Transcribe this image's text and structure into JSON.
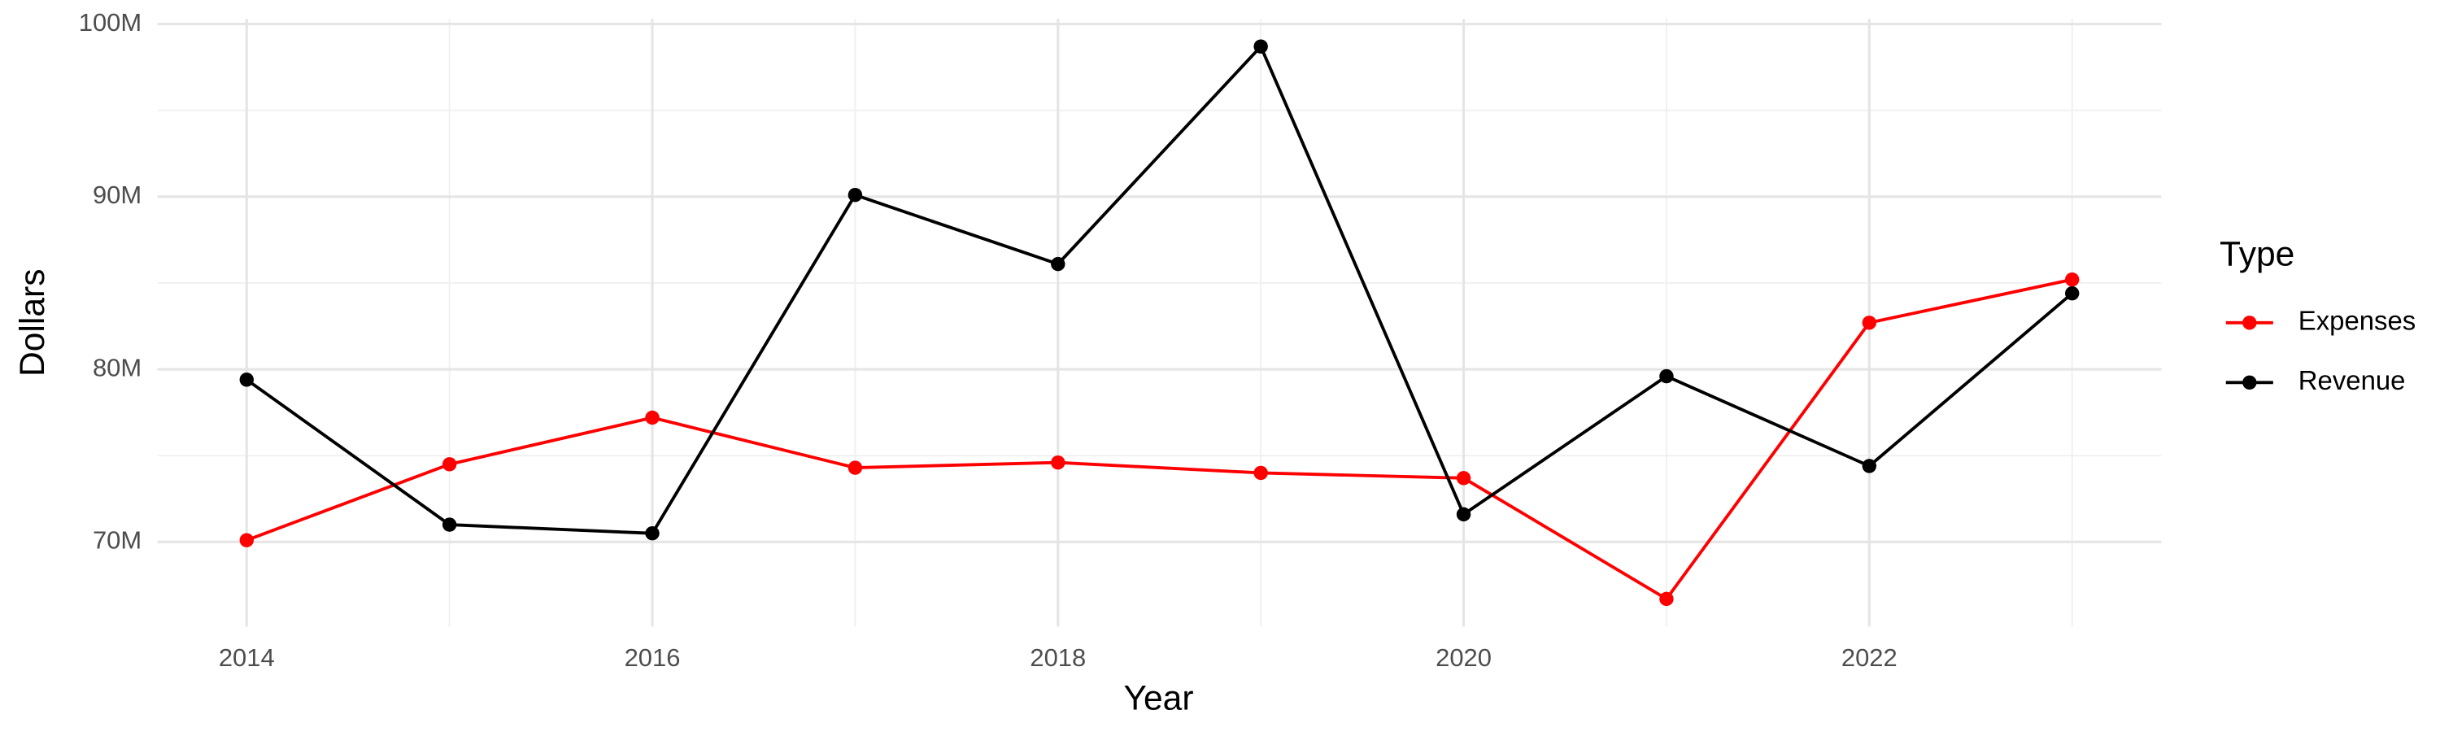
{
  "chart_data": {
    "type": "line",
    "x_label": "Year",
    "y_label": "Dollars",
    "legend_title": "Type",
    "x": [
      2014,
      2015,
      2016,
      2017,
      2018,
      2019,
      2020,
      2021,
      2022,
      2023
    ],
    "series": [
      {
        "name": "Expenses",
        "color": "#ff0000",
        "values": [
          70100000,
          74500000,
          77200000,
          74300000,
          74600000,
          74000000,
          73700000,
          66700000,
          82700000,
          85200000
        ]
      },
      {
        "name": "Revenue",
        "color": "#000000",
        "values": [
          79400000,
          71000000,
          70500000,
          90100000,
          86100000,
          98700000,
          71600000,
          79600000,
          74400000,
          84400000
        ]
      }
    ],
    "xlim": [
      2013.56,
      2023.44
    ],
    "xticks": [
      2014,
      2016,
      2018,
      2020,
      2022
    ],
    "ylim": [
      65100000,
      100300000
    ],
    "yticks": [
      {
        "value": 70000000,
        "label": "70M"
      },
      {
        "value": 80000000,
        "label": "80M"
      },
      {
        "value": 90000000,
        "label": "90M"
      },
      {
        "value": 100000000,
        "label": "100M"
      }
    ],
    "grid": true,
    "legend_position": "right"
  }
}
